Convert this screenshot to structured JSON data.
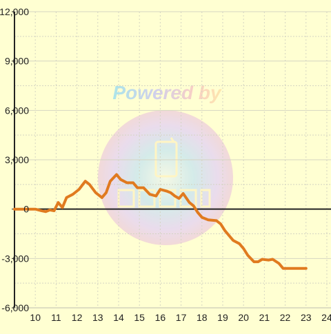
{
  "chart_data": {
    "type": "line",
    "x_ticks": [
      10,
      11,
      12,
      13,
      14,
      15,
      16,
      17,
      18,
      19,
      20,
      21,
      22,
      23,
      24
    ],
    "y_ticks": [
      12000,
      9000,
      6000,
      3000,
      0,
      -3000,
      -6000
    ],
    "y_tick_labels": [
      "12,000",
      "9,000",
      "6,000",
      "3,000",
      "0",
      "-3,000",
      "-6,000"
    ],
    "xlim": [
      9.0,
      24.2
    ],
    "ylim": [
      -6000,
      12000
    ],
    "grid": true,
    "series": [
      {
        "color": "#e07a1f",
        "points": [
          [
            9.0,
            0
          ],
          [
            9.5,
            0
          ],
          [
            10.0,
            0
          ],
          [
            10.3,
            -100
          ],
          [
            10.5,
            -150
          ],
          [
            10.7,
            -50
          ],
          [
            10.9,
            -100
          ],
          [
            11.1,
            400
          ],
          [
            11.3,
            100
          ],
          [
            11.5,
            700
          ],
          [
            11.8,
            900
          ],
          [
            12.1,
            1200
          ],
          [
            12.4,
            1700
          ],
          [
            12.6,
            1500
          ],
          [
            12.9,
            1000
          ],
          [
            13.2,
            700
          ],
          [
            13.4,
            1000
          ],
          [
            13.6,
            1700
          ],
          [
            13.9,
            2100
          ],
          [
            14.1,
            1800
          ],
          [
            14.4,
            1600
          ],
          [
            14.7,
            1600
          ],
          [
            14.9,
            1300
          ],
          [
            15.2,
            1300
          ],
          [
            15.5,
            900
          ],
          [
            15.8,
            800
          ],
          [
            16.0,
            1200
          ],
          [
            16.3,
            1100
          ],
          [
            16.5,
            1000
          ],
          [
            16.7,
            800
          ],
          [
            16.9,
            650
          ],
          [
            17.1,
            950
          ],
          [
            17.4,
            400
          ],
          [
            17.6,
            200
          ],
          [
            17.8,
            -200
          ],
          [
            18.0,
            -500
          ],
          [
            18.3,
            -650
          ],
          [
            18.7,
            -700
          ],
          [
            18.9,
            -900
          ],
          [
            19.1,
            -1300
          ],
          [
            19.3,
            -1600
          ],
          [
            19.5,
            -1900
          ],
          [
            19.8,
            -2100
          ],
          [
            20.0,
            -2400
          ],
          [
            20.2,
            -2800
          ],
          [
            20.5,
            -3200
          ],
          [
            20.7,
            -3200
          ],
          [
            20.9,
            -3050
          ],
          [
            21.2,
            -3100
          ],
          [
            21.4,
            -3050
          ],
          [
            21.7,
            -3300
          ],
          [
            21.9,
            -3600
          ],
          [
            22.4,
            -3600
          ],
          [
            23.0,
            -3600
          ]
        ]
      }
    ]
  },
  "watermark": {
    "text": "Powered by",
    "colors": [
      "#9fe1ee",
      "#c9c7ef",
      "#f9c7c2",
      "#fde3a7"
    ]
  },
  "style": {
    "background": "#ffffd2",
    "grid_color": "#d4d4c2",
    "axis_color": "#222222",
    "label_color": "#222222"
  }
}
